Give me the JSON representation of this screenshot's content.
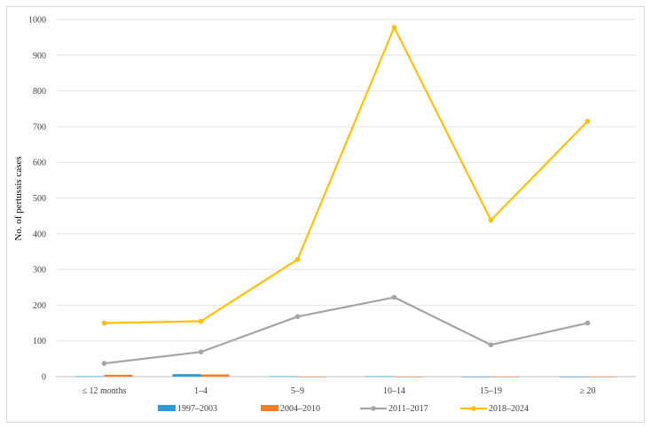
{
  "chart_data": {
    "type": "bar+line",
    "title": "",
    "xlabel": "",
    "ylabel": "No. of pertussis cases",
    "ylim": [
      0,
      1000
    ],
    "yticks": [
      0,
      100,
      200,
      300,
      400,
      500,
      600,
      700,
      800,
      900,
      1000
    ],
    "grid": true,
    "legend_position": "bottom",
    "categories": [
      "≤ 12 months",
      "1–4",
      "5–9",
      "10–14",
      "15–19",
      "≥ 20"
    ],
    "series": [
      {
        "name": "1997–2003",
        "kind": "bar",
        "color": "#2e9bd6",
        "values": [
          1,
          7,
          1,
          1,
          0,
          0
        ]
      },
      {
        "name": "2004–2010",
        "kind": "bar",
        "color": "#f07f2d",
        "values": [
          5,
          6,
          0,
          0,
          0,
          0
        ]
      },
      {
        "name": "2011–2017",
        "kind": "line",
        "color": "#a5a5a5",
        "values": [
          37,
          69,
          168,
          222,
          89,
          150
        ]
      },
      {
        "name": "2018–2024",
        "kind": "line",
        "color": "#ffc000",
        "values": [
          150,
          155,
          328,
          978,
          438,
          715
        ]
      }
    ]
  }
}
